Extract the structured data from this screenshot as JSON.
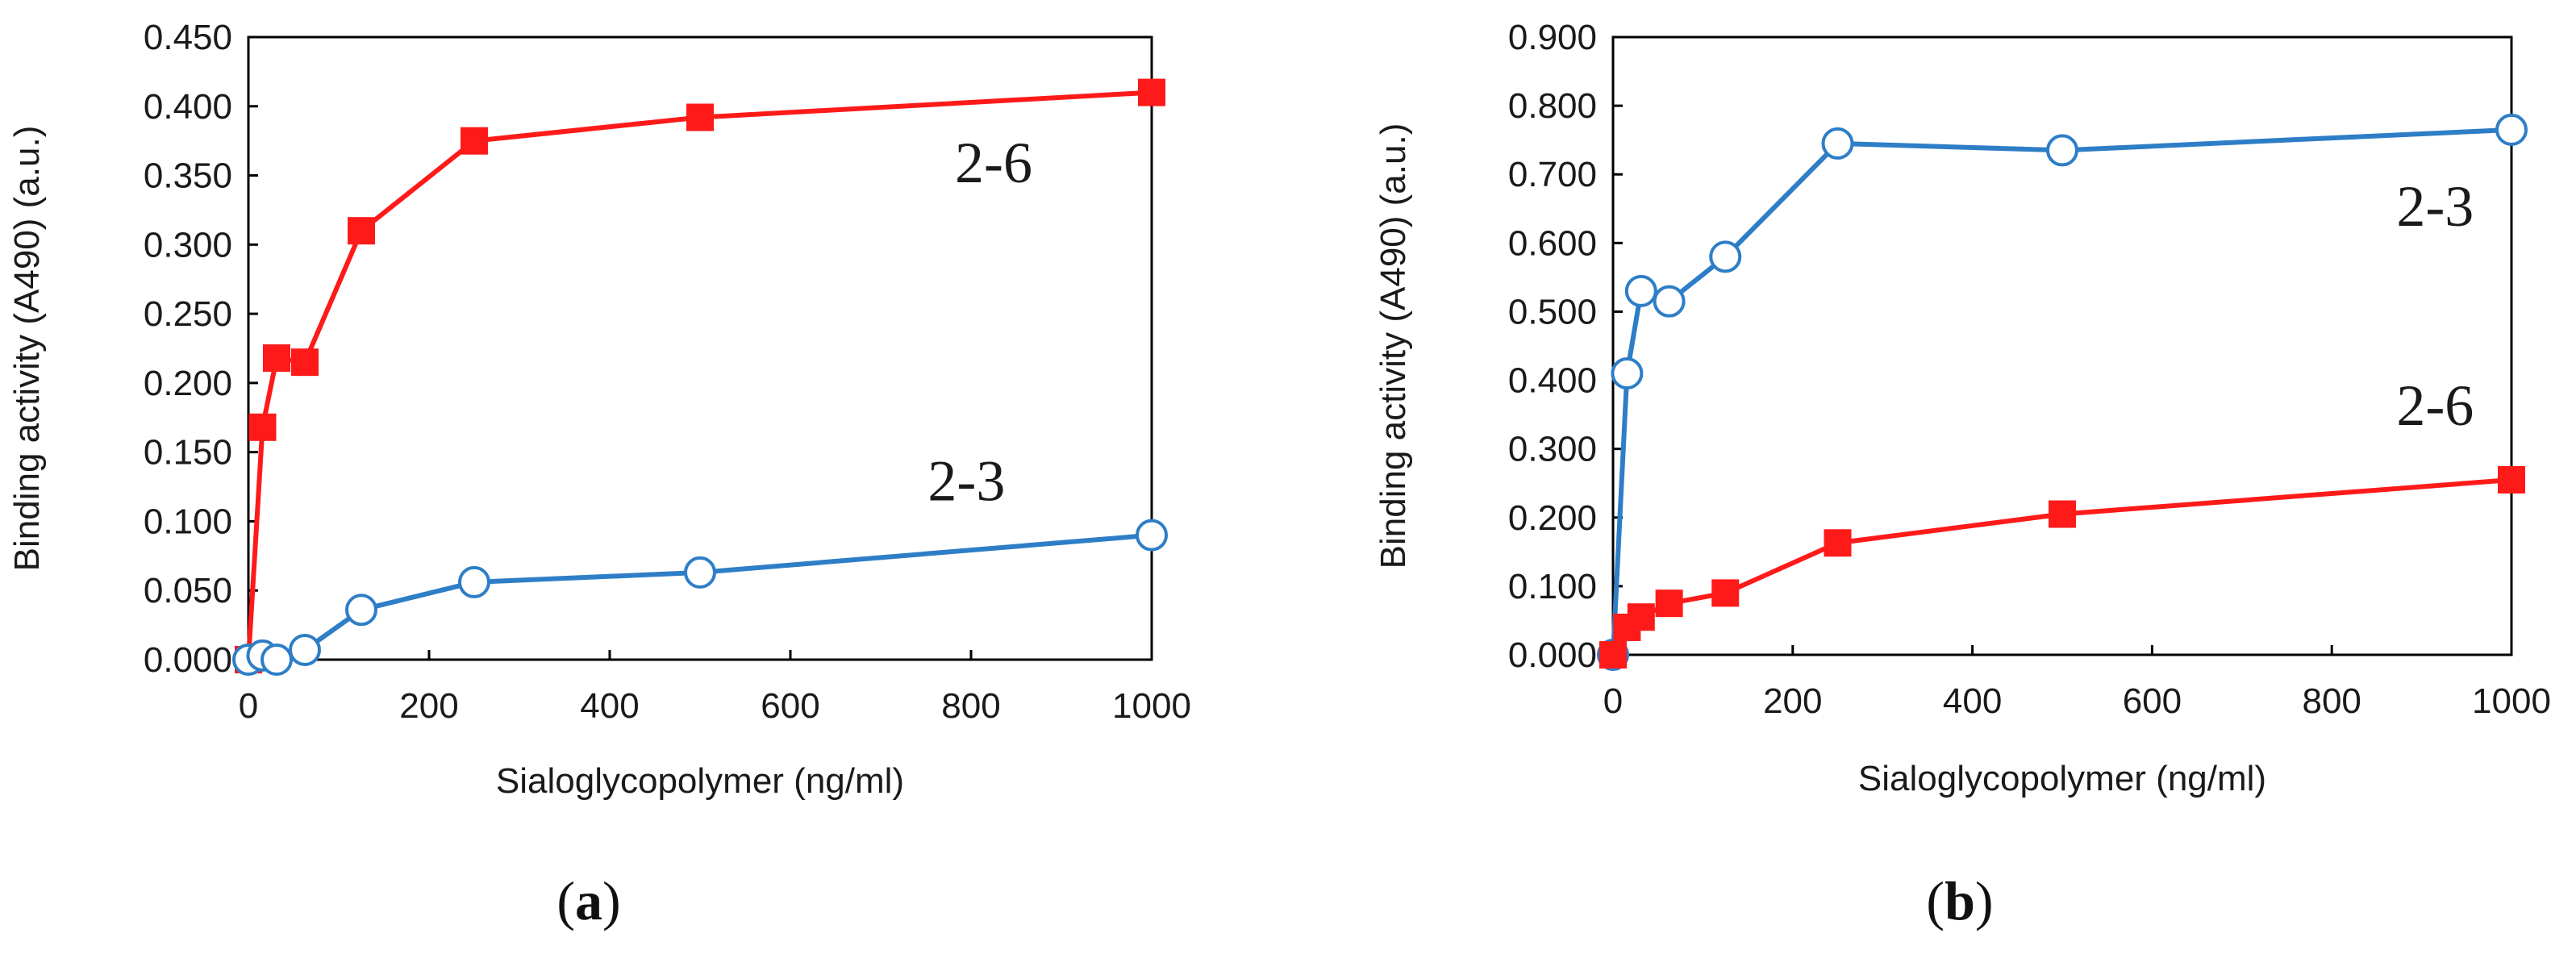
{
  "figure": {
    "panels": [
      {
        "label_open": "(",
        "label_letter": "a",
        "label_close": ")"
      },
      {
        "label_open": "(",
        "label_letter": "b",
        "label_close": ")"
      }
    ]
  },
  "colors": {
    "series_2_6": "#ff1a1a",
    "series_2_3": "#2e7ec7",
    "axis": "#000000",
    "marker_fill_open": "#ffffff"
  },
  "chart_data": [
    {
      "type": "line",
      "title": "",
      "xlabel": "Sialoglycopolymer (ng/ml)",
      "ylabel": "Binding activity (A490) (a.u.)",
      "xlim": [
        0,
        1000
      ],
      "ylim": [
        0,
        0.45
      ],
      "xticks": [
        "0",
        "200",
        "400",
        "600",
        "800",
        "1000"
      ],
      "xtick_values": [
        0,
        200,
        400,
        600,
        800,
        1000
      ],
      "yticks": [
        "0.000",
        "0.050",
        "0.100",
        "0.150",
        "0.200",
        "0.250",
        "0.300",
        "0.350",
        "0.400",
        "0.450"
      ],
      "ytick_values": [
        0,
        0.05,
        0.1,
        0.15,
        0.2,
        0.25,
        0.3,
        0.35,
        0.4,
        0.45
      ],
      "grid": false,
      "series": [
        {
          "name": "2-6",
          "marker": "square",
          "color": "#ff1a1a",
          "x": [
            0,
            15.6,
            31.25,
            62.5,
            125,
            250,
            500,
            1000
          ],
          "y": [
            0.0,
            0.168,
            0.218,
            0.215,
            0.31,
            0.375,
            0.392,
            0.41
          ],
          "label_at": [
            825,
            0.345
          ]
        },
        {
          "name": "2-3",
          "marker": "open-circle",
          "color": "#2e7ec7",
          "x": [
            0,
            15.6,
            31.25,
            62.5,
            125,
            250,
            500,
            1000
          ],
          "y": [
            0.0,
            0.003,
            0.0,
            0.007,
            0.036,
            0.056,
            0.063,
            0.09
          ],
          "label_at": [
            795,
            0.115
          ]
        }
      ]
    },
    {
      "type": "line",
      "title": "",
      "xlabel": "Sialoglycopolymer (ng/ml)",
      "ylabel": "Binding activity (A490) (a.u.)",
      "xlim": [
        0,
        1000
      ],
      "ylim": [
        0,
        0.9
      ],
      "xticks": [
        "0",
        "200",
        "400",
        "600",
        "800",
        "1000"
      ],
      "xtick_values": [
        0,
        200,
        400,
        600,
        800,
        1000
      ],
      "yticks": [
        "0.000",
        "0.100",
        "0.200",
        "0.300",
        "0.400",
        "0.500",
        "0.600",
        "0.700",
        "0.800",
        "0.900"
      ],
      "ytick_values": [
        0,
        0.1,
        0.2,
        0.3,
        0.4,
        0.5,
        0.6,
        0.7,
        0.8,
        0.9
      ],
      "grid": false,
      "series": [
        {
          "name": "2-3",
          "marker": "open-circle",
          "color": "#2e7ec7",
          "x": [
            0,
            15.6,
            31.25,
            62.5,
            125,
            250,
            500,
            1000
          ],
          "y": [
            0.0,
            0.41,
            0.53,
            0.515,
            0.58,
            0.745,
            0.735,
            0.765
          ],
          "label_at": [
            915,
            0.625
          ]
        },
        {
          "name": "2-6",
          "marker": "square",
          "color": "#ff1a1a",
          "x": [
            0,
            15.6,
            31.25,
            62.5,
            125,
            250,
            500,
            1000
          ],
          "y": [
            0.0,
            0.04,
            0.055,
            0.075,
            0.09,
            0.163,
            0.205,
            0.255
          ],
          "label_at": [
            915,
            0.335
          ]
        }
      ]
    }
  ]
}
